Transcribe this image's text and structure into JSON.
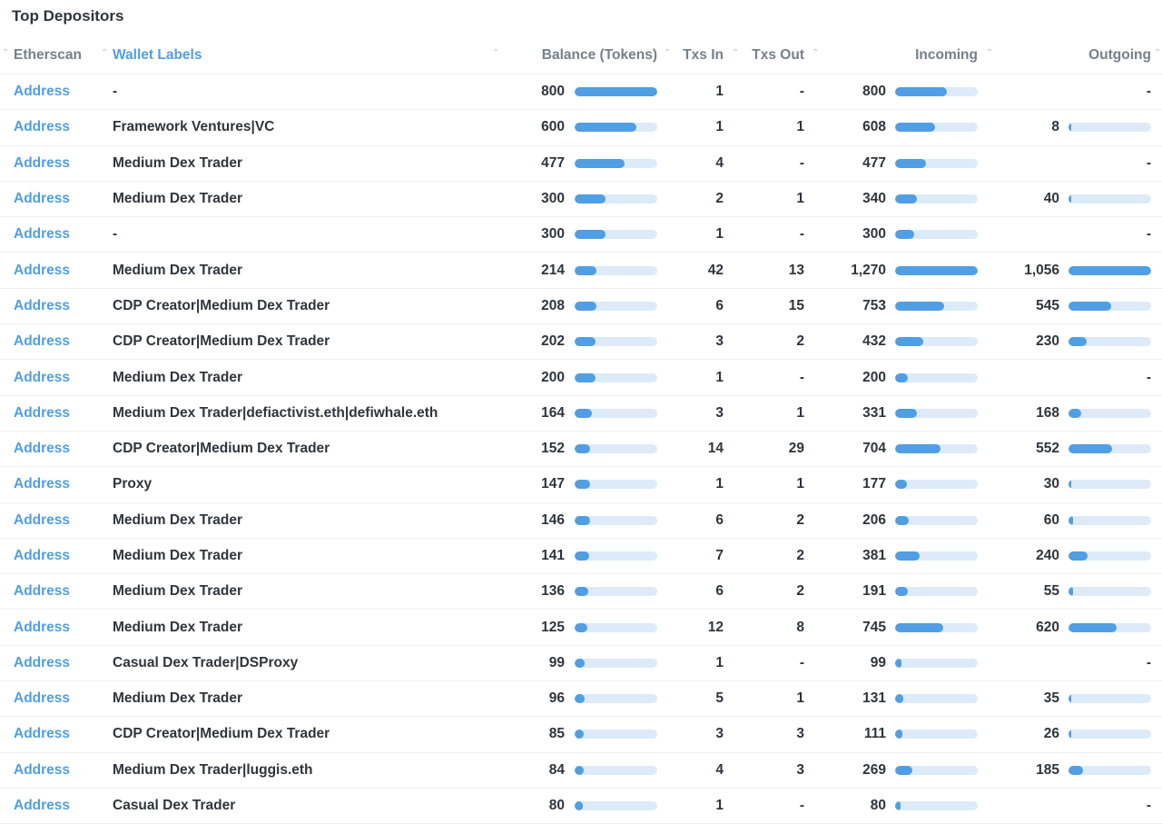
{
  "card": {
    "title": "Top Depositors"
  },
  "columns": {
    "etherscan": "Etherscan",
    "wallet_labels": "Wallet Labels",
    "balance": "Balance (Tokens)",
    "txs_in": "Txs In",
    "txs_out": "Txs Out",
    "incoming": "Incoming",
    "outgoing": "Outgoing"
  },
  "sort_icon": "caret-up-icon",
  "colors": {
    "accent": "#509ee3",
    "bar_track": "#ddeaf8",
    "text": "#2e353b",
    "header": "#75808c"
  },
  "rows": [
    {
      "link": "Address",
      "label": "-",
      "balance": "800",
      "bal_frac": 1.0,
      "txs_in": "1",
      "txs_out": "-",
      "incoming": "800",
      "in_frac": 0.63,
      "outgoing": "-",
      "out_frac": null
    },
    {
      "link": "Address",
      "label": "Framework Ventures|VC",
      "balance": "600",
      "bal_frac": 0.75,
      "txs_in": "1",
      "txs_out": "1",
      "incoming": "608",
      "in_frac": 0.48,
      "outgoing": "8",
      "out_frac": 0.008
    },
    {
      "link": "Address",
      "label": "Medium Dex Trader",
      "balance": "477",
      "bal_frac": 0.6,
      "txs_in": "4",
      "txs_out": "-",
      "incoming": "477",
      "in_frac": 0.376,
      "outgoing": "-",
      "out_frac": null
    },
    {
      "link": "Address",
      "label": "Medium Dex Trader",
      "balance": "300",
      "bal_frac": 0.375,
      "txs_in": "2",
      "txs_out": "1",
      "incoming": "340",
      "in_frac": 0.268,
      "outgoing": "40",
      "out_frac": 0.038
    },
    {
      "link": "Address",
      "label": "-",
      "balance": "300",
      "bal_frac": 0.375,
      "txs_in": "1",
      "txs_out": "-",
      "incoming": "300",
      "in_frac": 0.236,
      "outgoing": "-",
      "out_frac": null
    },
    {
      "link": "Address",
      "label": "Medium Dex Trader",
      "balance": "214",
      "bal_frac": 0.268,
      "txs_in": "42",
      "txs_out": "13",
      "incoming": "1,270",
      "in_frac": 1.0,
      "outgoing": "1,056",
      "out_frac": 1.0
    },
    {
      "link": "Address",
      "label": "CDP Creator|Medium Dex Trader",
      "balance": "208",
      "bal_frac": 0.26,
      "txs_in": "6",
      "txs_out": "15",
      "incoming": "753",
      "in_frac": 0.593,
      "outgoing": "545",
      "out_frac": 0.516
    },
    {
      "link": "Address",
      "label": "CDP Creator|Medium Dex Trader",
      "balance": "202",
      "bal_frac": 0.253,
      "txs_in": "3",
      "txs_out": "2",
      "incoming": "432",
      "in_frac": 0.34,
      "outgoing": "230",
      "out_frac": 0.218
    },
    {
      "link": "Address",
      "label": "Medium Dex Trader",
      "balance": "200",
      "bal_frac": 0.25,
      "txs_in": "1",
      "txs_out": "-",
      "incoming": "200",
      "in_frac": 0.157,
      "outgoing": "-",
      "out_frac": null
    },
    {
      "link": "Address",
      "label": "Medium Dex Trader|defiactivist.eth|defiwhale.eth",
      "balance": "164",
      "bal_frac": 0.205,
      "txs_in": "3",
      "txs_out": "1",
      "incoming": "331",
      "in_frac": 0.26,
      "outgoing": "168",
      "out_frac": 0.159
    },
    {
      "link": "Address",
      "label": "CDP Creator|Medium Dex Trader",
      "balance": "152",
      "bal_frac": 0.19,
      "txs_in": "14",
      "txs_out": "29",
      "incoming": "704",
      "in_frac": 0.554,
      "outgoing": "552",
      "out_frac": 0.523
    },
    {
      "link": "Address",
      "label": "Proxy",
      "balance": "147",
      "bal_frac": 0.184,
      "txs_in": "1",
      "txs_out": "1",
      "incoming": "177",
      "in_frac": 0.139,
      "outgoing": "30",
      "out_frac": 0.028
    },
    {
      "link": "Address",
      "label": "Medium Dex Trader",
      "balance": "146",
      "bal_frac": 0.183,
      "txs_in": "6",
      "txs_out": "2",
      "incoming": "206",
      "in_frac": 0.162,
      "outgoing": "60",
      "out_frac": 0.057
    },
    {
      "link": "Address",
      "label": "Medium Dex Trader",
      "balance": "141",
      "bal_frac": 0.176,
      "txs_in": "7",
      "txs_out": "2",
      "incoming": "381",
      "in_frac": 0.3,
      "outgoing": "240",
      "out_frac": 0.227
    },
    {
      "link": "Address",
      "label": "Medium Dex Trader",
      "balance": "136",
      "bal_frac": 0.17,
      "txs_in": "6",
      "txs_out": "2",
      "incoming": "191",
      "in_frac": 0.15,
      "outgoing": "55",
      "out_frac": 0.052
    },
    {
      "link": "Address",
      "label": "Medium Dex Trader",
      "balance": "125",
      "bal_frac": 0.156,
      "txs_in": "12",
      "txs_out": "8",
      "incoming": "745",
      "in_frac": 0.587,
      "outgoing": "620",
      "out_frac": 0.587
    },
    {
      "link": "Address",
      "label": "Casual Dex Trader|DSProxy",
      "balance": "99",
      "bal_frac": 0.124,
      "txs_in": "1",
      "txs_out": "-",
      "incoming": "99",
      "in_frac": 0.078,
      "outgoing": "-",
      "out_frac": null
    },
    {
      "link": "Address",
      "label": "Medium Dex Trader",
      "balance": "96",
      "bal_frac": 0.12,
      "txs_in": "5",
      "txs_out": "1",
      "incoming": "131",
      "in_frac": 0.103,
      "outgoing": "35",
      "out_frac": 0.033
    },
    {
      "link": "Address",
      "label": "CDP Creator|Medium Dex Trader",
      "balance": "85",
      "bal_frac": 0.106,
      "txs_in": "3",
      "txs_out": "3",
      "incoming": "111",
      "in_frac": 0.087,
      "outgoing": "26",
      "out_frac": 0.025
    },
    {
      "link": "Address",
      "label": "Medium Dex Trader|luggis.eth",
      "balance": "84",
      "bal_frac": 0.105,
      "txs_in": "4",
      "txs_out": "3",
      "incoming": "269",
      "in_frac": 0.212,
      "outgoing": "185",
      "out_frac": 0.175
    },
    {
      "link": "Address",
      "label": "Casual Dex Trader",
      "balance": "80",
      "bal_frac": 0.1,
      "txs_in": "1",
      "txs_out": "-",
      "incoming": "80",
      "in_frac": 0.063,
      "outgoing": "-",
      "out_frac": null
    }
  ]
}
